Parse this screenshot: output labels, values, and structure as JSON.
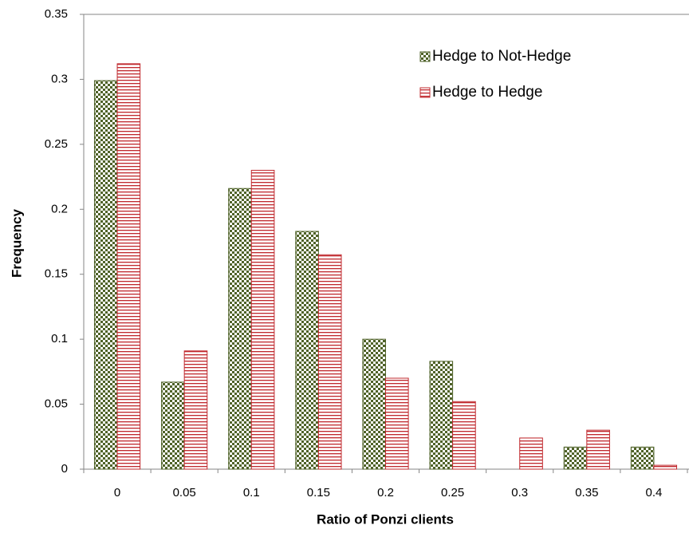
{
  "chart_data": {
    "type": "bar",
    "x_label": "Ratio of Ponzi clients",
    "y_label": "Frequency",
    "categories": [
      "0",
      "0.05",
      "0.1",
      "0.15",
      "0.2",
      "0.25",
      "0.3",
      "0.35",
      "0.4"
    ],
    "series": [
      {
        "name": "Hedge to Not-Hedge",
        "color": "#4f6228",
        "pattern": "checker",
        "values": [
          0.299,
          0.067,
          0.216,
          0.183,
          0.1,
          0.083,
          0,
          0.017,
          0.017
        ]
      },
      {
        "name": "Hedge to Hedge",
        "color": "#c0282d",
        "pattern": "stripes",
        "values": [
          0.312,
          0.091,
          0.23,
          0.165,
          0.07,
          0.052,
          0.024,
          0.03,
          0.003
        ]
      }
    ],
    "ylim": [
      0,
      0.35
    ],
    "yticks": [
      0,
      0.05,
      0.1,
      0.15,
      0.2,
      0.25,
      0.3,
      0.35
    ],
    "legend": "top-right"
  }
}
